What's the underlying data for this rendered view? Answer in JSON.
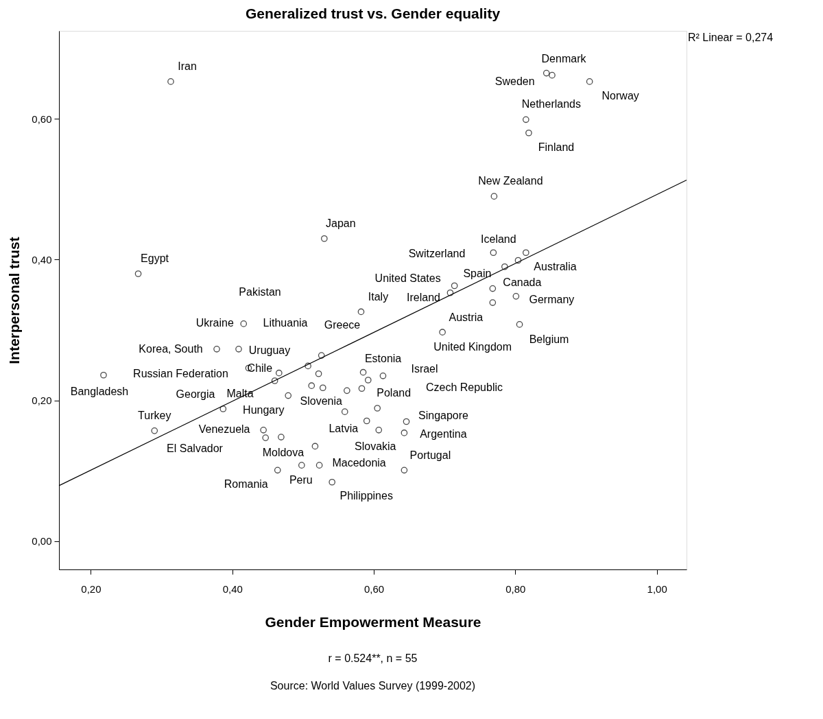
{
  "chart_data": {
    "type": "scatter",
    "title": "Generalized trust vs. Gender equality",
    "xlabel": "Gender Empowerment Measure",
    "ylabel": "Interpersonal trust",
    "xlim": [
      0.155,
      1.042
    ],
    "ylim": [
      -0.04,
      0.725
    ],
    "xticks": [
      {
        "value": 0.2,
        "label": "0,20"
      },
      {
        "value": 0.4,
        "label": "0,40"
      },
      {
        "value": 0.6,
        "label": "0,60"
      },
      {
        "value": 0.8,
        "label": "0,80"
      },
      {
        "value": 1.0,
        "label": "1,00"
      }
    ],
    "yticks": [
      {
        "value": 0.0,
        "label": "0,00"
      },
      {
        "value": 0.2,
        "label": "0,20"
      },
      {
        "value": 0.4,
        "label": "0,40"
      },
      {
        "value": 0.6,
        "label": "0,60"
      }
    ],
    "grid": false,
    "series": [
      {
        "color": "#000000",
        "marker": "circle",
        "x": [
          0.313,
          0.844,
          0.852,
          0.905,
          0.815,
          0.819,
          0.77,
          0.53,
          0.267,
          0.769,
          0.815,
          0.804,
          0.785,
          0.714,
          0.768,
          0.708,
          0.801,
          0.768,
          0.582,
          0.416,
          0.806,
          0.697,
          0.378,
          0.409,
          0.526,
          0.423,
          0.507,
          0.466,
          0.46,
          0.585,
          0.613,
          0.592,
          0.218,
          0.522,
          0.512,
          0.528,
          0.562,
          0.583,
          0.479,
          0.605,
          0.387,
          0.559,
          0.59,
          0.646,
          0.607,
          0.643,
          0.29,
          0.444,
          0.447,
          0.469,
          0.517,
          0.523,
          0.498,
          0.541,
          0.464,
          0.643
        ],
        "values": [
          0.653,
          0.665,
          0.662,
          0.653,
          0.599,
          0.58,
          0.49,
          0.43,
          0.38,
          0.41,
          0.41,
          0.399,
          0.39,
          0.363,
          0.359,
          0.353,
          0.348,
          0.339,
          0.326,
          0.309,
          0.308,
          0.297,
          0.273,
          0.273,
          0.264,
          0.246,
          0.249,
          0.239,
          0.228,
          0.24,
          0.235,
          0.229,
          0.236,
          0.238,
          0.221,
          0.218,
          0.214,
          0.217,
          0.207,
          0.189,
          0.188,
          0.184,
          0.171,
          0.17,
          0.158,
          0.154,
          0.157,
          0.158,
          0.147,
          0.148,
          0.135,
          0.108,
          0.108,
          0.084,
          0.101,
          0.101
        ],
        "value_labels": [
          "Iran",
          "Sweden",
          "Denmark",
          "Norway",
          "Netherlands",
          "Finland",
          "New Zealand",
          "Japan",
          "Egypt",
          null,
          "Iceland",
          "Australia",
          "Spain",
          "United States",
          "Canada",
          "Ireland",
          "Germany",
          "Austria",
          "Italy",
          "Ukraine",
          "Belgium",
          "United Kingdom",
          "Korea, South",
          "Uruguay",
          null,
          "Russian Federation",
          null,
          "Chile",
          null,
          "Estonia",
          null,
          null,
          "Bangladesh",
          null,
          null,
          null,
          null,
          null,
          "Slovenia",
          "Poland",
          "Hungary",
          null,
          "Latvia",
          "Singapore",
          "Slovakia",
          "Argentina",
          "Turkey",
          "Venezuela",
          null,
          "Moldova",
          null,
          "Macedonia",
          "Peru",
          "Philippines",
          "Romania",
          "Portugal"
        ]
      },
      {
        "type": "line",
        "color": "#000000",
        "marker": "none",
        "x": [
          0.155,
          1.042
        ],
        "values": [
          0.079,
          0.513
        ]
      }
    ],
    "annotations": [
      "R² Linear = 0,274",
      "r = 0.524**, n = 55",
      "Source: World Values Survey (1999-2002)",
      "Pakistan",
      "Lithuania",
      "Greece",
      "Georgia",
      "Malta",
      "Czech Republic",
      "El Salvador",
      "Switzerland",
      "Israel"
    ]
  }
}
